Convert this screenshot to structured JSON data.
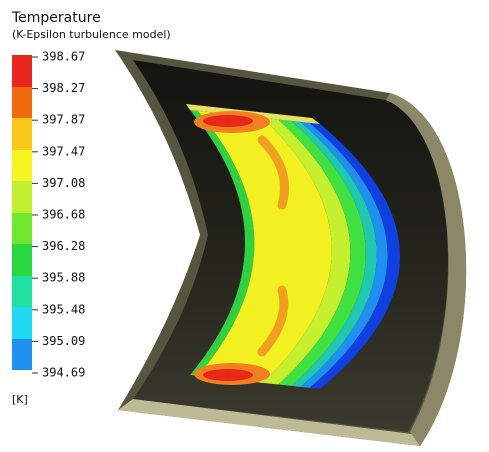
{
  "legend": {
    "title": "Temperature",
    "subtitle": "(K-Epsilon turbulence model)",
    "levels": [
      "398.67",
      "398.27",
      "397.87",
      "397.47",
      "397.08",
      "396.68",
      "396.28",
      "395.88",
      "395.48",
      "395.09",
      "394.69"
    ],
    "unit": "[K]"
  }
}
